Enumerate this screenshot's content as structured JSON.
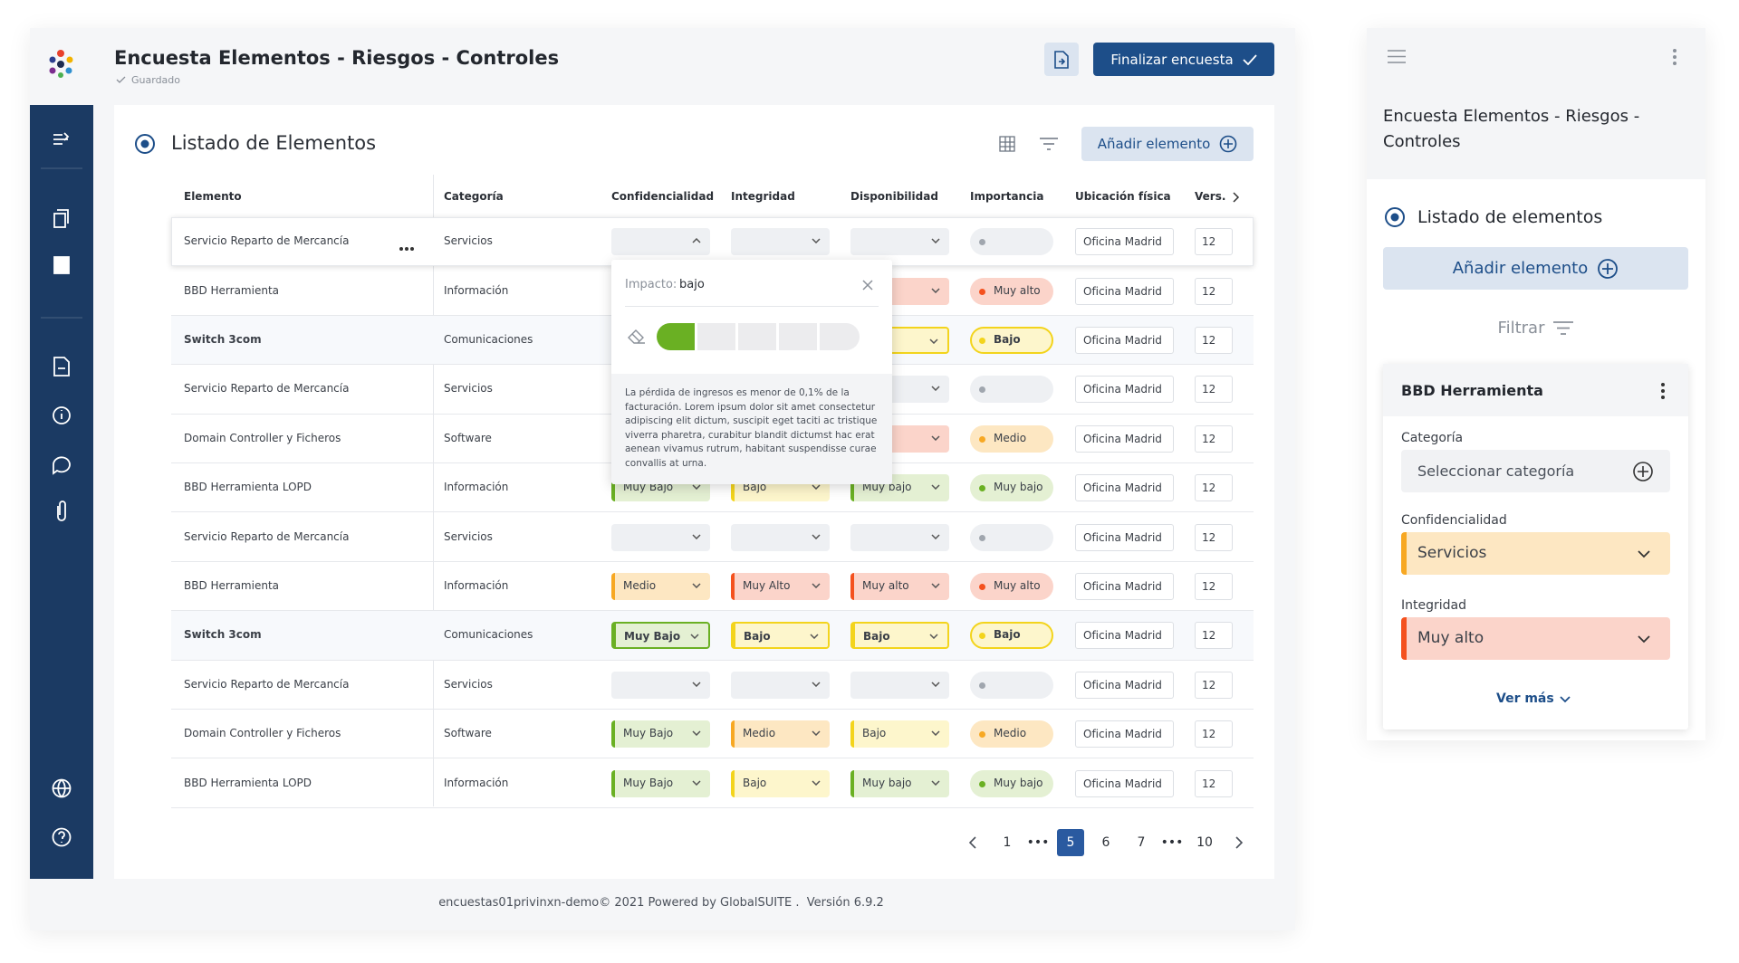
{
  "header": {
    "title": "Encuesta Elementos - Riesgos - Controles",
    "status": "Guardado",
    "finish_button": "Finalizar encuesta"
  },
  "panel": {
    "title": "Listado de Elementos",
    "add_button": "Añadir elemento"
  },
  "table": {
    "columns": [
      "Elemento",
      "Categoría",
      "Confidencialidad",
      "Integridad",
      "Disponibilidad",
      "Importancia",
      "Ubicación física",
      "Vers."
    ],
    "rows": [
      {
        "element": "Servicio Reparto de Mercancía",
        "category": "Servicios",
        "selected": true,
        "confidentiality": {
          "tone": "gray",
          "open": true
        },
        "integrity": {
          "tone": "gray"
        },
        "availability": {
          "tone": "gray"
        },
        "importance": {
          "tone": "gray"
        },
        "location": "Oficina Madrid",
        "version": 12
      },
      {
        "element": "BBD Herramienta",
        "category": "Información",
        "confidentiality": null,
        "integrity": null,
        "availability": {
          "tone": "red"
        },
        "importance": {
          "label": "Muy alto",
          "tone": "red"
        },
        "location": "Oficina Madrid",
        "version": 12
      },
      {
        "element": "Switch 3com",
        "category": "Comunicaciones",
        "highlight": true,
        "confidentiality": null,
        "integrity": null,
        "availability": {
          "tone": "yellow",
          "outlined": true
        },
        "importance": {
          "label": "Bajo",
          "tone": "yellow",
          "outlined": true
        },
        "location": "Oficina Madrid",
        "version": 12
      },
      {
        "element": "Servicio Reparto de Mercancía",
        "category": "Servicios",
        "confidentiality": null,
        "integrity": null,
        "availability": {
          "tone": "gray"
        },
        "importance": {
          "tone": "gray"
        },
        "location": "Oficina Madrid",
        "version": 12
      },
      {
        "element": "Domain Controller y Ficheros",
        "category": "Software",
        "confidentiality": null,
        "integrity": null,
        "availability": {
          "tone": "red"
        },
        "importance": {
          "label": "Medio",
          "tone": "orange"
        },
        "location": "Oficina Madrid",
        "version": 12
      },
      {
        "element": "BBD Herramienta LOPD",
        "category": "Información",
        "confidentiality": {
          "label": "Muy Bajo",
          "tone": "green"
        },
        "integrity": {
          "label": "Bajo",
          "tone": "yellow"
        },
        "availability": {
          "label": "Muy bajo",
          "tone": "green"
        },
        "importance": {
          "label": "Muy bajo",
          "tone": "green"
        },
        "location": "Oficina Madrid",
        "version": 12
      },
      {
        "element": "Servicio Reparto de Mercancía",
        "category": "Servicios",
        "confidentiality": {
          "tone": "gray"
        },
        "integrity": {
          "tone": "gray"
        },
        "availability": {
          "tone": "gray"
        },
        "importance": {
          "tone": "gray"
        },
        "location": "Oficina Madrid",
        "version": 12
      },
      {
        "element": "BBD Herramienta",
        "category": "Información",
        "confidentiality": {
          "label": "Medio",
          "tone": "orange"
        },
        "integrity": {
          "label": "Muy Alto",
          "tone": "red"
        },
        "availability": {
          "label": "Muy alto",
          "tone": "red"
        },
        "importance": {
          "label": "Muy alto",
          "tone": "red"
        },
        "location": "Oficina Madrid",
        "version": 12
      },
      {
        "element": "Switch 3com",
        "category": "Comunicaciones",
        "highlight": true,
        "confidentiality": {
          "label": "Muy Bajo",
          "tone": "green",
          "outlined": true
        },
        "integrity": {
          "label": "Bajo",
          "tone": "yellow",
          "outlined": true
        },
        "availability": {
          "label": "Bajo",
          "tone": "yellow",
          "outlined": true
        },
        "importance": {
          "label": "Bajo",
          "tone": "yellow",
          "outlined": true
        },
        "location": "Oficina Madrid",
        "version": 12
      },
      {
        "element": "Servicio Reparto de Mercancía",
        "category": "Servicios",
        "confidentiality": {
          "tone": "gray"
        },
        "integrity": {
          "tone": "gray"
        },
        "availability": {
          "tone": "gray"
        },
        "importance": {
          "tone": "gray"
        },
        "location": "Oficina Madrid",
        "version": 12
      },
      {
        "element": "Domain Controller y Ficheros",
        "category": "Software",
        "confidentiality": {
          "label": "Muy Bajo",
          "tone": "green"
        },
        "integrity": {
          "label": "Medio",
          "tone": "orange"
        },
        "availability": {
          "label": "Bajo",
          "tone": "yellow"
        },
        "importance": {
          "label": "Medio",
          "tone": "orange"
        },
        "location": "Oficina Madrid",
        "version": 12
      },
      {
        "element": "BBD Herramienta LOPD",
        "category": "Información",
        "confidentiality": {
          "label": "Muy Bajo",
          "tone": "green"
        },
        "integrity": {
          "label": "Bajo",
          "tone": "yellow"
        },
        "availability": {
          "label": "Muy bajo",
          "tone": "green"
        },
        "importance": {
          "label": "Muy bajo",
          "tone": "green"
        },
        "location": "Oficina Madrid",
        "version": 12
      }
    ]
  },
  "popup": {
    "label": "Impacto:",
    "value": "bajo",
    "description": "La pérdida de ingresos es menor de 0,1% de la facturación. Lorem ipsum dolor sit amet consectetur adipiscing elit dictum, suscipit eget taciti ac tristique viverra pharetra, curabitur blandit dictumst hac erat aenean vivamus rutrum, habitant suspendisse curae convallis at urna."
  },
  "pagination": {
    "pages": [
      {
        "label": "1"
      },
      {
        "label": "•••"
      },
      {
        "label": "5",
        "active": true
      },
      {
        "label": "6"
      },
      {
        "label": "7"
      },
      {
        "label": "•••"
      },
      {
        "label": "10"
      }
    ]
  },
  "footer": "encuestas01privinxn-demo© 2021 Powered by GlobalSUITE .  Versión 6.9.2",
  "mobile": {
    "title": "Encuesta Elementos - Riesgos - Controles",
    "section": "Listado de elementos",
    "add_button": "Añadir elemento",
    "filter": "Filtrar",
    "card": {
      "title": "BBD Herramienta",
      "fields": [
        {
          "label": "Categoría",
          "placeholder": "Seleccionar categoría"
        },
        {
          "label": "Confidencialidad",
          "value": "Servicios",
          "tone": "orange"
        },
        {
          "label": "Integridad",
          "value": "Muy alto",
          "tone": "red"
        }
      ],
      "more": "Ver más"
    }
  }
}
